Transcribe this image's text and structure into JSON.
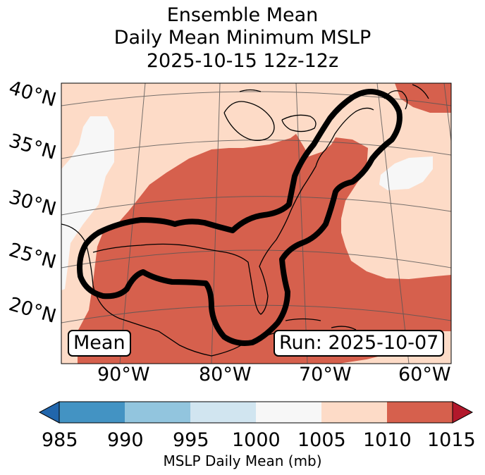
{
  "title": {
    "line1": "Ensemble Mean",
    "line2": "Daily Mean Minimum MSLP",
    "line3": "2025-10-15 12z-12z"
  },
  "map": {
    "lat_labels": [
      "40°N",
      "35°N",
      "30°N",
      "25°N",
      "20°N"
    ],
    "lon_labels": [
      "90°W",
      "80°W",
      "70°W",
      "60°W"
    ],
    "mean_label": "Mean",
    "run_label": "Run: 2025-10-07"
  },
  "colorbar": {
    "ticks": [
      "985",
      "990",
      "995",
      "1000",
      "1005",
      "1010",
      "1015"
    ],
    "label": "MSLP Daily Mean (mb)",
    "colors": {
      "under": "#2166ac",
      "985-990": "#4393c3",
      "990-995": "#92c5de",
      "995-1000": "#d1e5f0",
      "1000-1005": "#f7f7f7",
      "1005-1010": "#fddbc7",
      "1010-1015": "#d6604d",
      "over": "#b2182b"
    }
  }
}
